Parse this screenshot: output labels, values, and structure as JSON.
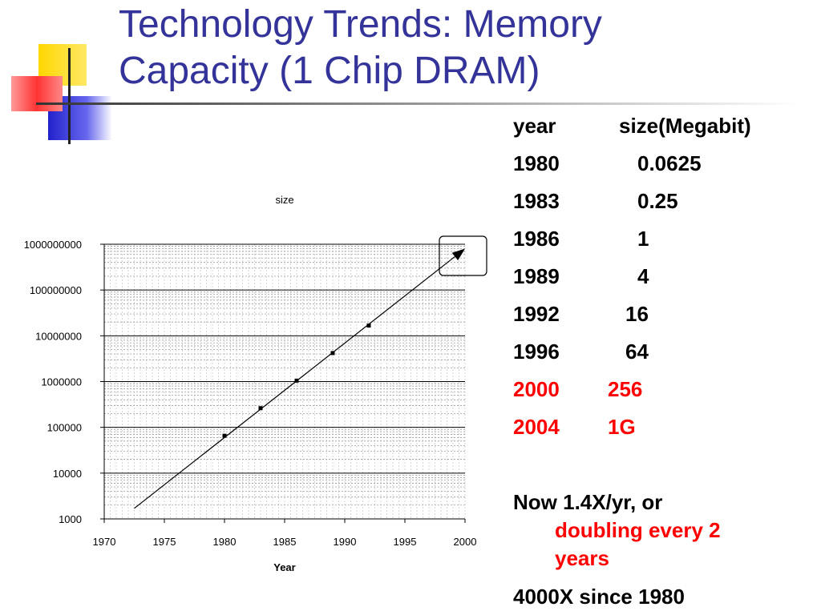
{
  "slide": {
    "title_line1": "Technology Trends: Memory",
    "title_line2": "Capacity (1 Chip DRAM)",
    "title_color": "#333399"
  },
  "table": {
    "header": {
      "year": "year",
      "size": "size(Megabit)"
    },
    "rows": [
      {
        "year": "1980",
        "size": "0.0625",
        "highlight": false
      },
      {
        "year": "1983",
        "size": "0.25",
        "highlight": false
      },
      {
        "year": "1986",
        "size": "1",
        "highlight": false
      },
      {
        "year": "1989",
        "size": "4",
        "highlight": false
      },
      {
        "year": "1992",
        "size": "16",
        "highlight": false
      },
      {
        "year": "1996",
        "size": "64",
        "highlight": false
      },
      {
        "year": "2000",
        "size": "256",
        "highlight": true
      },
      {
        "year": "2004",
        "size": "1G",
        "highlight": true
      }
    ],
    "highlight_color": "#ff0000"
  },
  "notes": {
    "line1": "Now 1.4X/yr, or",
    "line2": "doubling every 2",
    "line3": "years",
    "line4": "4000X since 1980"
  },
  "chart_data": {
    "type": "scatter",
    "title": "size",
    "xlabel": "Year",
    "ylabel": "",
    "y_scale": "log",
    "xlim": [
      1970,
      2000
    ],
    "ylim": [
      1000,
      1000000000
    ],
    "x_ticks": [
      "1970",
      "1975",
      "1980",
      "1985",
      "1990",
      "1995",
      "2000"
    ],
    "y_ticks": [
      "1000",
      "10000",
      "100000",
      "1000000",
      "10000000",
      "100000000",
      "1000000000"
    ],
    "grid": true,
    "x": [
      1980,
      1983,
      1986,
      1989,
      1992
    ],
    "y": [
      65536,
      262144,
      1048576,
      4194304,
      16777216
    ],
    "trend_line": {
      "x": [
        1972.5,
        2000
      ],
      "y": [
        1700,
        800000000
      ]
    }
  }
}
